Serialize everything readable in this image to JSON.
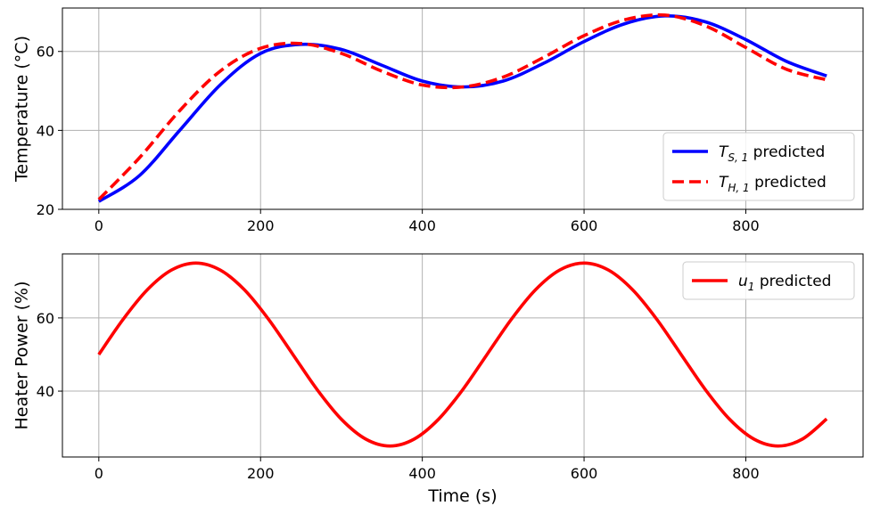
{
  "chart_data": [
    {
      "type": "line",
      "xlabel": "",
      "ylabel": "Temperature (°C)",
      "xlim": [
        -45,
        945
      ],
      "ylim": [
        20,
        71
      ],
      "xticks": [
        0,
        200,
        400,
        600,
        800
      ],
      "yticks": [
        20,
        40,
        60
      ],
      "x_tick_labels": [
        "0",
        "200",
        "400",
        "600",
        "800"
      ],
      "y_tick_labels": [
        "20",
        "40",
        "60"
      ],
      "grid": true,
      "legend_position": "lower-right",
      "x": [
        0,
        50,
        100,
        150,
        200,
        250,
        300,
        350,
        400,
        450,
        500,
        550,
        600,
        650,
        700,
        750,
        800,
        850,
        900
      ],
      "series": [
        {
          "name": "T_{S,1} predicted",
          "legend_main": "T",
          "legend_sub": "S, 1",
          "legend_rest": " predicted",
          "color": "#0000ff",
          "style": "solid",
          "values": [
            22.0,
            28.5,
            40.0,
            51.5,
            59.5,
            61.8,
            60.5,
            56.5,
            52.5,
            51.0,
            52.5,
            57.0,
            62.5,
            67.0,
            69.0,
            67.5,
            63.0,
            57.5,
            53.8
          ]
        },
        {
          "name": "T_{H,1} predicted",
          "legend_main": "T",
          "legend_sub": "H, 1",
          "legend_rest": " predicted",
          "color": "#ff0000",
          "style": "dashed",
          "values": [
            22.5,
            33.0,
            45.0,
            55.0,
            60.8,
            62.0,
            59.5,
            55.0,
            51.5,
            51.0,
            53.5,
            58.5,
            64.0,
            68.0,
            69.2,
            66.5,
            61.0,
            55.5,
            52.8
          ]
        }
      ]
    },
    {
      "type": "line",
      "xlabel": "Time (s)",
      "ylabel": "Heater Power (%)",
      "xlim": [
        -45,
        945
      ],
      "ylim": [
        22,
        77.5
      ],
      "xticks": [
        0,
        200,
        400,
        600,
        800
      ],
      "yticks": [
        40,
        60
      ],
      "x_tick_labels": [
        "0",
        "200",
        "400",
        "600",
        "800"
      ],
      "y_tick_labels": [
        "40",
        "60"
      ],
      "grid": true,
      "legend_position": "upper-right",
      "x": [
        0,
        30,
        60,
        90,
        120,
        150,
        180,
        210,
        240,
        270,
        300,
        330,
        360,
        390,
        420,
        450,
        480,
        510,
        540,
        570,
        600,
        630,
        660,
        690,
        720,
        750,
        780,
        810,
        840,
        870,
        900
      ],
      "series": [
        {
          "name": "u_1 predicted",
          "legend_main": "u",
          "legend_sub": "1",
          "legend_rest": " predicted",
          "color": "#ff0000",
          "style": "solid",
          "values": [
            50.0,
            59.6,
            67.7,
            73.1,
            75.0,
            73.1,
            67.7,
            59.6,
            50.0,
            40.4,
            32.3,
            26.9,
            25.0,
            26.9,
            32.3,
            40.4,
            50.0,
            59.6,
            67.7,
            73.1,
            75.0,
            73.1,
            67.7,
            59.6,
            50.0,
            40.4,
            32.3,
            26.9,
            25.0,
            26.9,
            32.4
          ]
        }
      ]
    }
  ]
}
